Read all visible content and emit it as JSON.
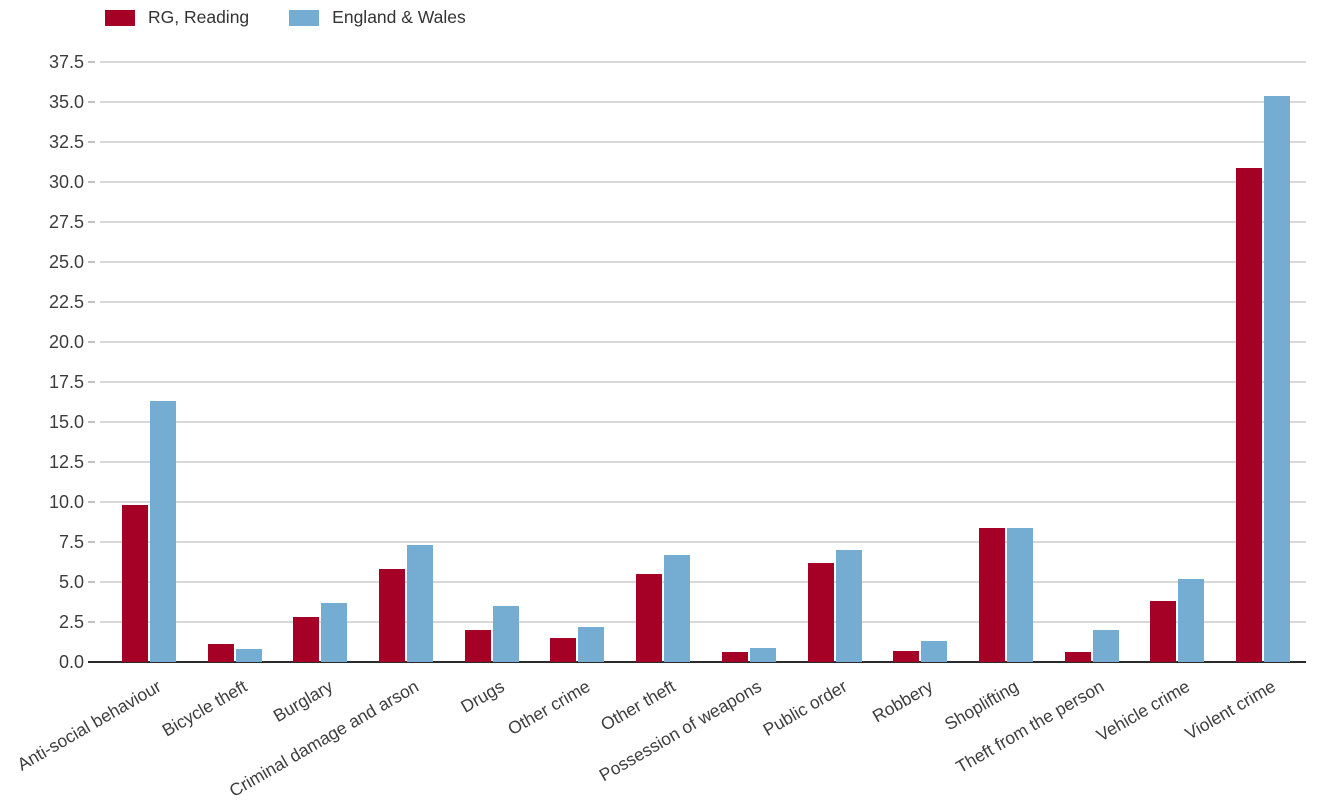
{
  "legend": {
    "items": [
      {
        "label": "RG, Reading",
        "color": "#A50026"
      },
      {
        "label": "England & Wales",
        "color": "#74ADD1"
      }
    ],
    "position": "top-left"
  },
  "chart_data": {
    "type": "bar",
    "title": "",
    "xlabel": "",
    "ylabel": "",
    "categories": [
      "Anti-social behaviour",
      "Bicycle theft",
      "Burglary",
      "Criminal damage and arson",
      "Drugs",
      "Other crime",
      "Other theft",
      "Possession of weapons",
      "Public order",
      "Robbery",
      "Shoplifting",
      "Theft from the person",
      "Vehicle crime",
      "Violent crime"
    ],
    "series": [
      {
        "name": "RG, Reading",
        "color": "#A50026",
        "values": [
          9.8,
          1.1,
          2.8,
          5.8,
          2.0,
          1.5,
          5.5,
          0.6,
          6.2,
          0.7,
          8.4,
          0.6,
          3.8,
          30.9
        ]
      },
      {
        "name": "England & Wales",
        "color": "#74ADD1",
        "values": [
          16.3,
          0.8,
          3.7,
          7.3,
          3.5,
          2.2,
          6.7,
          0.9,
          7.0,
          1.3,
          8.4,
          2.0,
          5.2,
          35.4
        ]
      }
    ],
    "y_axis": {
      "min": 0,
      "max": 38.5,
      "tick_step": 2.5,
      "tick_labels": [
        "0.0",
        "2.5",
        "5.0",
        "7.5",
        "10.0",
        "12.5",
        "15.0",
        "17.5",
        "20.0",
        "22.5",
        "25.0",
        "27.5",
        "30.0",
        "32.5",
        "35.0",
        "37.5"
      ]
    },
    "x_tick_rotation_deg": -30,
    "grid": true,
    "gridline_color": "#d8d8d8",
    "axis_line_color": "#2b2b2b",
    "tick_text_color": "#3d3d3d",
    "legend_position": "top-left",
    "ylim": [
      0,
      38.5
    ]
  }
}
